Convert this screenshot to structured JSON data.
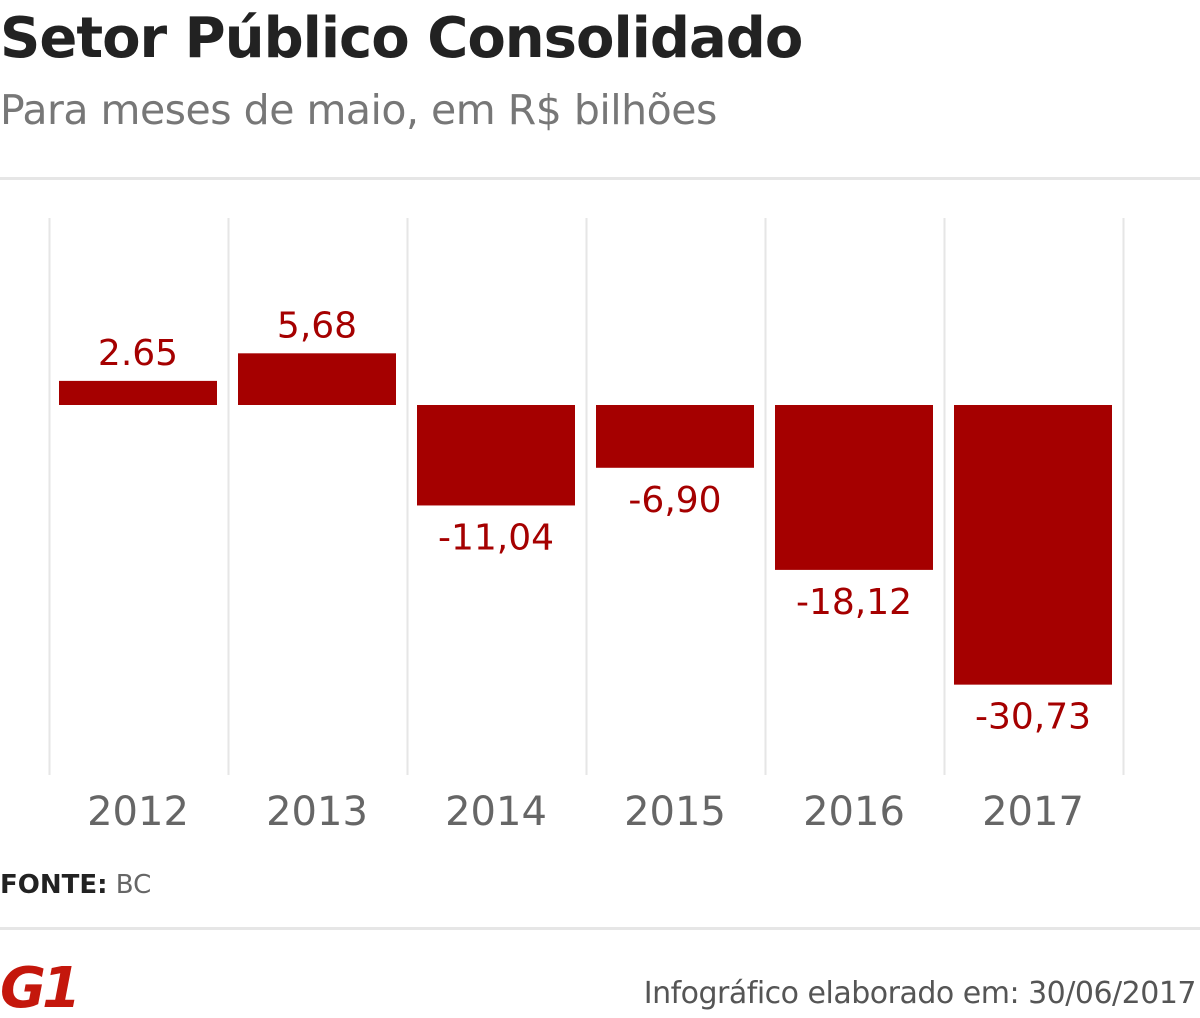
{
  "header": {
    "title": "Setor Público Consolidado",
    "subtitle": "Para meses de maio, em R$ bilhões"
  },
  "chart_data": {
    "type": "bar",
    "title": "Setor Público Consolidado",
    "subtitle": "Para meses de maio, em R$ bilhões",
    "categories": [
      "2012",
      "2013",
      "2014",
      "2015",
      "2016",
      "2017"
    ],
    "values": [
      2.65,
      5.68,
      -11.04,
      -6.9,
      -18.12,
      -30.73
    ],
    "value_labels": [
      "2.65",
      "5,68",
      "-11,04",
      "-6,90",
      "-18,12",
      "-30,73"
    ],
    "xlabel": "",
    "ylabel": "",
    "ylim": [
      -40,
      8
    ],
    "grid": "vertical category separators",
    "legend": "none",
    "bar_color": "#a50000"
  },
  "footer": {
    "source_label": "FONTE:",
    "source_value": "BC",
    "logo_text": "G1",
    "credit": "Infográfico elaborado em: 30/06/2017"
  },
  "colors": {
    "bar": "#a50000",
    "label": "#a50000",
    "logo": "#c4170c",
    "title": "#222222",
    "subtitle": "#777777",
    "axis_text": "#666666",
    "gridline": "#e6e6e6"
  }
}
